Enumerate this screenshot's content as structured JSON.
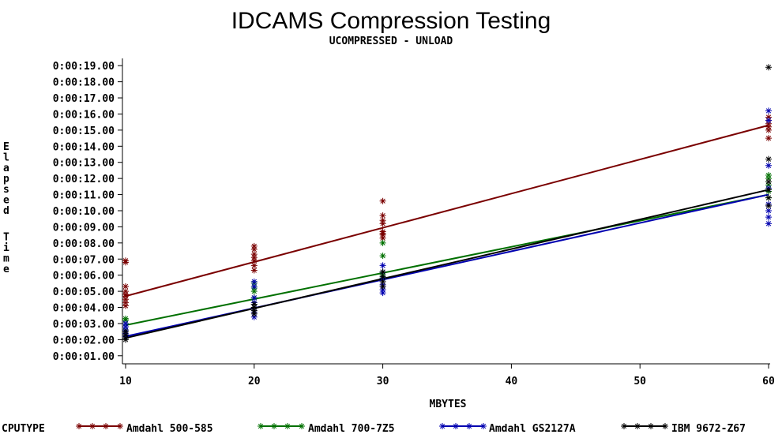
{
  "chart_data": {
    "type": "line",
    "title": "IDCAMS Compression Testing",
    "subtitle": "UCOMPRESSED - UNLOAD",
    "xlabel": "MBYTES",
    "ylabel": "Elapsed Time",
    "xlim": [
      10,
      60
    ],
    "ylim": [
      1,
      19
    ],
    "x_ticks": [
      "10",
      "20",
      "30",
      "40",
      "50",
      "60"
    ],
    "y_ticks": [
      "0:00:01.00",
      "0:00:02.00",
      "0:00:03.00",
      "0:00:04.00",
      "0:00:05.00",
      "0:00:06.00",
      "0:00:07.00",
      "0:00:08.00",
      "0:00:09.00",
      "0:00:10.00",
      "0:00:11.00",
      "0:00:12.00",
      "0:00:13.00",
      "0:00:14.00",
      "0:00:15.00",
      "0:00:16.00",
      "0:00:17.00",
      "0:00:18.00",
      "0:00:19.00"
    ],
    "legend_title": "CPUTYPE",
    "legend_position": "bottom",
    "series": [
      {
        "name": "Amdahl 500-585",
        "color": "#7a0000",
        "fit": [
          [
            10,
            4.7
          ],
          [
            60,
            15.3
          ]
        ],
        "points": {
          "10": [
            4.1,
            4.3,
            4.5,
            4.7,
            4.8,
            5.0,
            5.3,
            6.8,
            6.9
          ],
          "20": [
            6.3,
            6.6,
            6.9,
            7.1,
            7.3,
            7.6,
            7.8
          ],
          "30": [
            8.3,
            8.5,
            8.6,
            8.7,
            9.2,
            9.4,
            9.7,
            10.6
          ],
          "60": [
            14.5,
            15.0,
            15.2,
            15.4,
            15.6,
            15.8
          ]
        }
      },
      {
        "name": "Amdahl 700-7Z5",
        "color": "#007000",
        "fit": [
          [
            10,
            2.9
          ],
          [
            60,
            11.0
          ]
        ],
        "points": {
          "10": [
            2.6,
            2.8,
            3.0,
            3.2,
            3.3
          ],
          "20": [
            4.2,
            4.6,
            5.0,
            5.2,
            5.5
          ],
          "30": [
            5.8,
            6.0,
            6.2,
            7.2,
            8.0
          ],
          "60": [
            10.8,
            11.2,
            11.6,
            12.0,
            12.2
          ]
        }
      },
      {
        "name": "Amdahl GS2127A",
        "color": "#0000b0",
        "fit": [
          [
            10,
            2.2
          ],
          [
            60,
            11.0
          ]
        ],
        "points": {
          "10": [
            2.2,
            2.4,
            2.6,
            2.8,
            3.0
          ],
          "20": [
            3.4,
            3.7,
            4.0,
            4.3,
            4.6,
            5.3,
            5.6
          ],
          "30": [
            4.9,
            5.1,
            5.4,
            5.8,
            6.2,
            6.6
          ],
          "60": [
            9.2,
            9.6,
            10.0,
            10.4,
            11.4,
            12.8,
            15.6,
            16.2
          ]
        }
      },
      {
        "name": "IBM 9672-Z67",
        "color": "#000000",
        "fit": [
          [
            10,
            2.1
          ],
          [
            60,
            11.3
          ]
        ],
        "points": {
          "10": [
            2.0,
            2.1,
            2.3,
            2.5
          ],
          "20": [
            3.6,
            3.8,
            4.0,
            4.2
          ],
          "30": [
            5.3,
            5.6,
            5.9,
            6.2
          ],
          "60": [
            10.3,
            10.8,
            11.3,
            11.8,
            13.2,
            18.9
          ]
        }
      }
    ]
  }
}
